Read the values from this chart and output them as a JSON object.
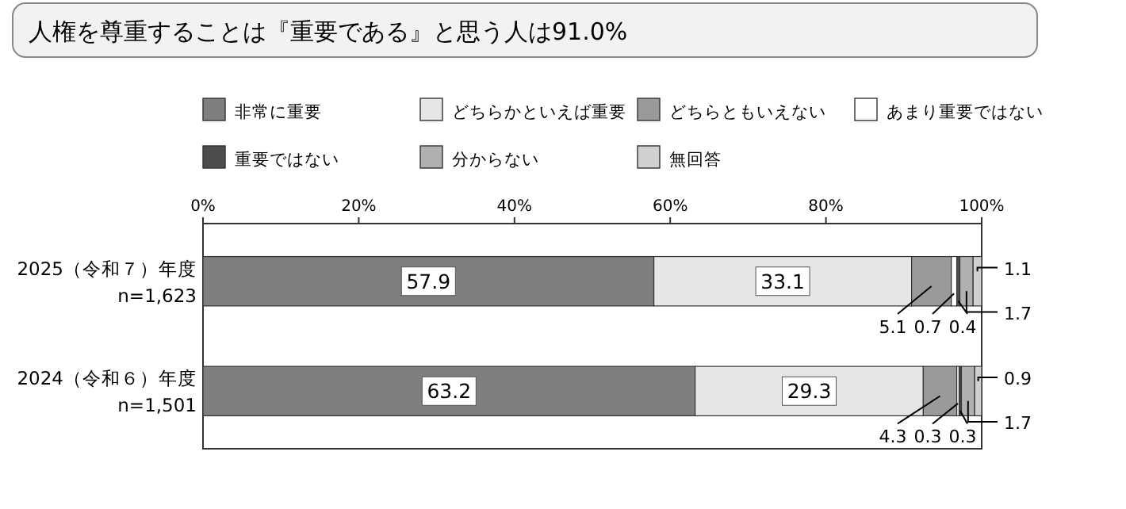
{
  "chart_data": {
    "type": "bar",
    "orientation": "horizontal",
    "stacked": true,
    "title": "人権を尊重することは『重要である』と思う人は91.0%",
    "categories": [
      "2025（令和７）年度\nn=1,623",
      "2024（令和６）年度\nn=1,501"
    ],
    "series": [
      {
        "name": "非常に重要",
        "color": "#7f7f7f",
        "values": [
          57.9,
          63.2
        ]
      },
      {
        "name": "どちらかといえば重要",
        "color": "#e6e6e6",
        "values": [
          33.1,
          29.3
        ]
      },
      {
        "name": "どちらともいえない",
        "color": "#9a9a9a",
        "values": [
          5.1,
          4.3
        ]
      },
      {
        "name": "あまり重要ではない",
        "color": "#ffffff",
        "values": [
          0.7,
          0.3
        ]
      },
      {
        "name": "重要ではない",
        "color": "#4d4d4d",
        "values": [
          0.4,
          0.3
        ]
      },
      {
        "name": "分からない",
        "color": "#b0b0b0",
        "values": [
          1.7,
          1.7
        ]
      },
      {
        "name": "無回答",
        "color": "#d0d0d0",
        "values": [
          1.1,
          0.9
        ]
      }
    ],
    "xlim": [
      0,
      100
    ],
    "xticks": [
      {
        "value": 0,
        "label": "0%"
      },
      {
        "value": 20,
        "label": "20%"
      },
      {
        "value": 40,
        "label": "40%"
      },
      {
        "value": 60,
        "label": "60%"
      },
      {
        "value": 80,
        "label": "80%"
      },
      {
        "value": 100,
        "label": "100%"
      }
    ],
    "data_labels": true,
    "legend": "top"
  }
}
